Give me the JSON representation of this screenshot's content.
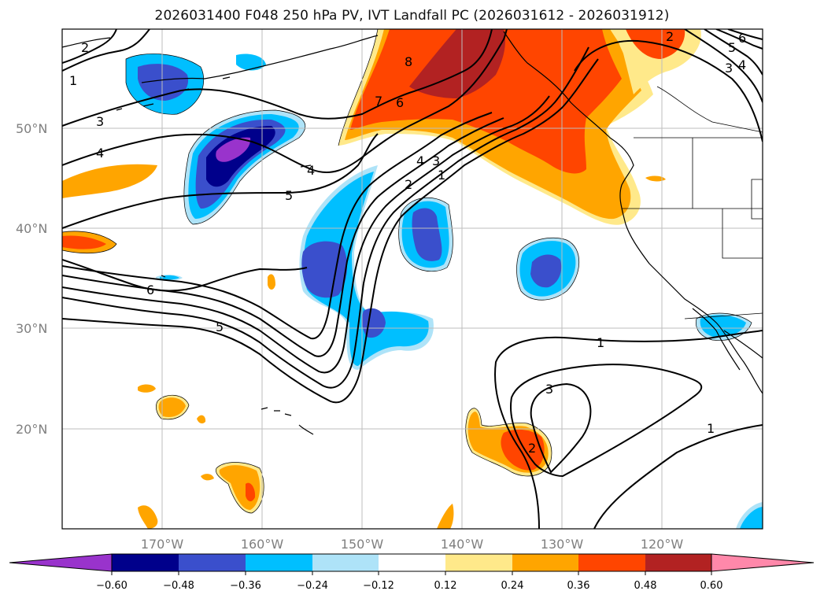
{
  "title": "2026031400 F048 250 hPa PV, IVT Landfall PC (2026031612 - 2026031912)",
  "axes": {
    "lat_labels": [
      "50°N",
      "40°N",
      "30°N",
      "20°N"
    ],
    "lon_labels": [
      "170°W",
      "160°W",
      "150°W",
      "140°W",
      "130°W",
      "120°W"
    ]
  },
  "contour_labels": [
    "2",
    "1",
    "3",
    "4",
    "5",
    "6",
    "5",
    "4",
    "8",
    "7",
    "6",
    "4",
    "3",
    "2",
    "1",
    "1",
    "3",
    "2",
    "1",
    "5",
    "4",
    "3",
    "2",
    "6"
  ],
  "colorbar": {
    "tick_labels": [
      "−0.60",
      "−0.48",
      "−0.36",
      "−0.24",
      "−0.12",
      "0.12",
      "0.24",
      "0.36",
      "0.48",
      "0.60"
    ],
    "colors": [
      "#9933cc",
      "#00008b",
      "#3a4fcc",
      "#00bfff",
      "#aee3f8",
      "#ffffff",
      "#ffe98a",
      "#ffa500",
      "#ff4500",
      "#b22222",
      "#ff88aa"
    ]
  },
  "fill_colors": {
    "neg3": "#9933cc",
    "neg2": "#00008b",
    "neg1": "#3a4fcc",
    "neg0": "#00bfff",
    "negl": "#aee3f8",
    "posl": "#ffe98a",
    "pos0": "#ffa500",
    "pos1": "#ff4500",
    "pos2": "#b22222"
  }
}
